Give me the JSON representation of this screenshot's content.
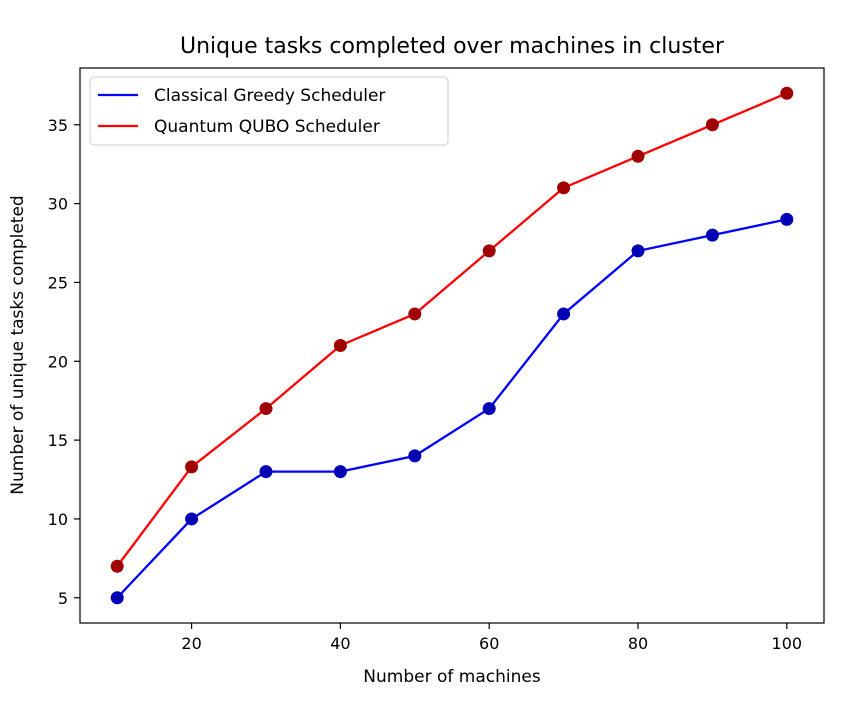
{
  "chart_data": {
    "type": "line",
    "title": "Unique tasks completed over machines in cluster",
    "xlabel": "Number of machines",
    "ylabel": "Number of unique tasks completed",
    "x": [
      10,
      20,
      30,
      40,
      50,
      60,
      70,
      80,
      90,
      100
    ],
    "xlim": [
      5,
      105
    ],
    "ylim": [
      3.4,
      38.6
    ],
    "xticks": [
      20,
      40,
      60,
      80,
      100
    ],
    "yticks": [
      5,
      10,
      15,
      20,
      25,
      30,
      35
    ],
    "grid": false,
    "legend_position": "top-left",
    "series": [
      {
        "name": "Classical Greedy Scheduler",
        "values": [
          5,
          10,
          13,
          13,
          14,
          17,
          23,
          27,
          28,
          29
        ],
        "line_color": "#0000ff",
        "marker_color": "#0000b4"
      },
      {
        "name": "Quantum QUBO Scheduler",
        "values": [
          7,
          13.3,
          17,
          21,
          23,
          27,
          31,
          33,
          35,
          37
        ],
        "line_color": "#ff0000",
        "marker_color": "#a00000"
      }
    ]
  }
}
